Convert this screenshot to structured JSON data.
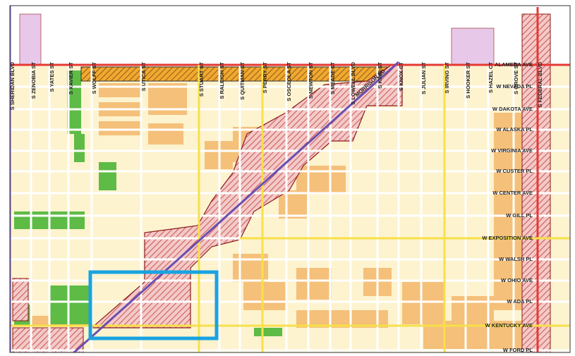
{
  "map": {
    "north_south_streets": [
      "S SHERIDAN BLVD",
      "S ZENOBIA ST",
      "S YATES ST",
      "S XAVIER ST",
      "S WOLFF ST",
      "S UTICA ST",
      "S STUART ST",
      "S RALEIGH ST",
      "S QUITMAN ST",
      "S PERRY ST",
      "S OSCEOLA ST",
      "S NEWTON ST",
      "S MEADE ST",
      "S LOWELL BLVD",
      "S KING ST",
      "S KNOX CT",
      "S JULIAN ST",
      "S IRVING ST",
      "S HOOKER ST",
      "S HAZEL CT",
      "S GROVE ST",
      "S FEDERAL BLVD"
    ],
    "east_west_streets": [
      "ALAMEDA AVE",
      "W NEVADA PL",
      "W DAKOTA AVE",
      "W ALASKA PL",
      "W VIRGINIA AVE",
      "W CUSTER PL",
      "W CENTER AVE",
      "W GILL PL",
      "W EXPOSITION AVE",
      "W WALSH PL",
      "W OHIO AVE",
      "W ADA PL",
      "W KENTUCKY AVE",
      "W FORD PL"
    ],
    "diagonal_street": "MORRISON RD"
  }
}
